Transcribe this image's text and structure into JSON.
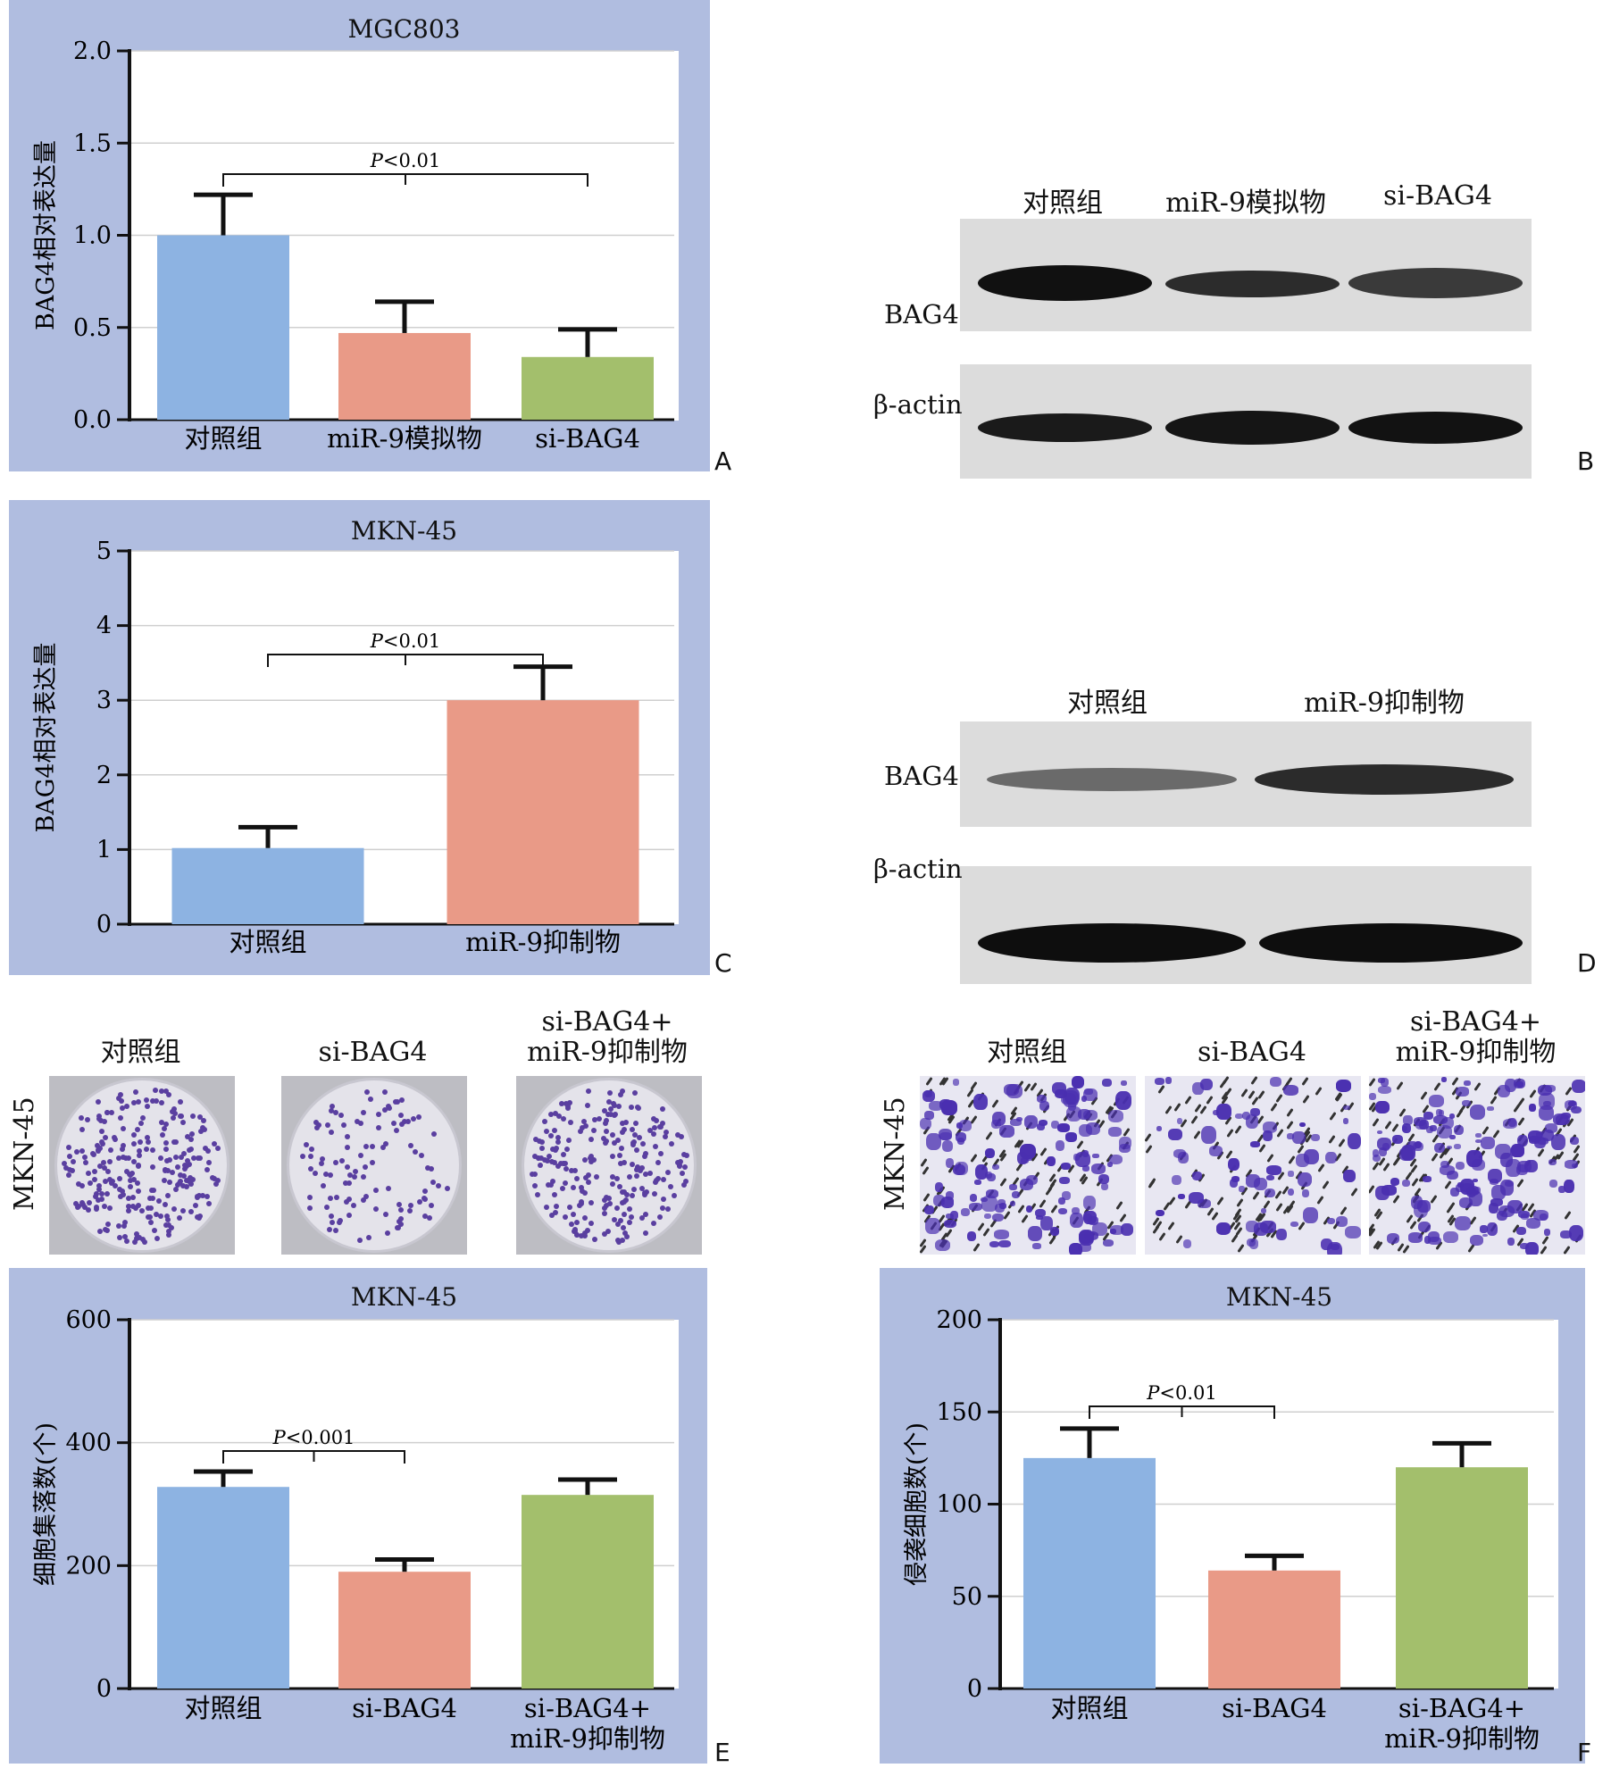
{
  "chart_data": [
    {
      "panel": "A",
      "type": "bar",
      "title": "MGC803",
      "ylabel": "BAG4相对表达量",
      "categories": [
        "对照组",
        "miR-9模拟物",
        "si-BAG4"
      ],
      "values": [
        1.0,
        0.47,
        0.34
      ],
      "errors": [
        0.22,
        0.17,
        0.15
      ],
      "ylim": [
        0,
        2.0
      ],
      "yticks": [
        "0.0",
        "0.5",
        "1.0",
        "1.5",
        "2.0"
      ],
      "tickvals": [
        0,
        0.5,
        1.0,
        1.5,
        2.0
      ],
      "significance": {
        "from": 0,
        "to": 2,
        "label": "P<0.01",
        "p": "P",
        "rest": "<0.01"
      },
      "colors": [
        "#8db3e2",
        "#e99a87",
        "#a3bf6c"
      ]
    },
    {
      "panel": "C",
      "type": "bar",
      "title": "MKN-45",
      "ylabel": "BAG4相对表达量",
      "categories": [
        "对照组",
        "miR-9抑制物"
      ],
      "values": [
        1.02,
        3.0
      ],
      "errors": [
        0.28,
        0.45
      ],
      "ylim": [
        0,
        5
      ],
      "yticks": [
        "0",
        "1",
        "2",
        "3",
        "4",
        "5"
      ],
      "tickvals": [
        0,
        1,
        2,
        3,
        4,
        5
      ],
      "significance": {
        "from": 0,
        "to": 1,
        "label": "P<0.01",
        "p": "P",
        "rest": "<0.01"
      },
      "colors": [
        "#8db3e2",
        "#e99a87"
      ]
    },
    {
      "panel": "E",
      "type": "bar",
      "title": "MKN-45",
      "ylabel": "细胞集落数(个)",
      "categories": [
        "对照组",
        "si-BAG4",
        "si-BAG4+\nmiR-9抑制物"
      ],
      "values": [
        328,
        190,
        315
      ],
      "errors": [
        25,
        20,
        25
      ],
      "ylim": [
        0,
        600
      ],
      "yticks": [
        "0",
        "200",
        "400",
        "600"
      ],
      "tickvals": [
        0,
        200,
        400,
        600
      ],
      "significance": {
        "from": 0,
        "to": 1,
        "label": "P<0.001",
        "p": "P",
        "rest": "<0.001"
      },
      "colors": [
        "#8db3e2",
        "#e99a87",
        "#a3bf6c"
      ]
    },
    {
      "panel": "F",
      "type": "bar",
      "title": "MKN-45",
      "ylabel": "侵袭细胞数(个)",
      "categories": [
        "对照组",
        "si-BAG4",
        "si-BAG4+\nmiR-9抑制物"
      ],
      "values": [
        125,
        64,
        120
      ],
      "errors": [
        16,
        8,
        13
      ],
      "ylim": [
        0,
        200
      ],
      "yticks": [
        "0",
        "50",
        "100",
        "150",
        "200"
      ],
      "tickvals": [
        0,
        50,
        100,
        150,
        200
      ],
      "significance": {
        "from": 0,
        "to": 1,
        "label": "P<0.01",
        "p": "P",
        "rest": "<0.01"
      },
      "colors": [
        "#8db3e2",
        "#e99a87",
        "#a3bf6c"
      ]
    }
  ],
  "panel_letters": {
    "A": "A",
    "B": "B",
    "C": "C",
    "D": "D",
    "E": "E",
    "F": "F"
  },
  "blot_b": {
    "headers": [
      "对照组",
      "miR-9模拟物",
      "si-BAG4"
    ],
    "row_labels": [
      "BAG4",
      "β-actin"
    ]
  },
  "blot_d": {
    "headers": [
      "对照组",
      "miR-9抑制物"
    ],
    "row_labels": [
      "BAG4",
      "β-actin"
    ]
  },
  "colony": {
    "side_label": "MKN-45",
    "headers": [
      "对照组",
      "si-BAG4",
      "si-BAG4+\nmiR-9抑制物"
    ]
  },
  "invasion": {
    "side_label": "MKN-45",
    "headers": [
      "对照组",
      "si-BAG4",
      "si-BAG4+\nmiR-9抑制物"
    ]
  }
}
